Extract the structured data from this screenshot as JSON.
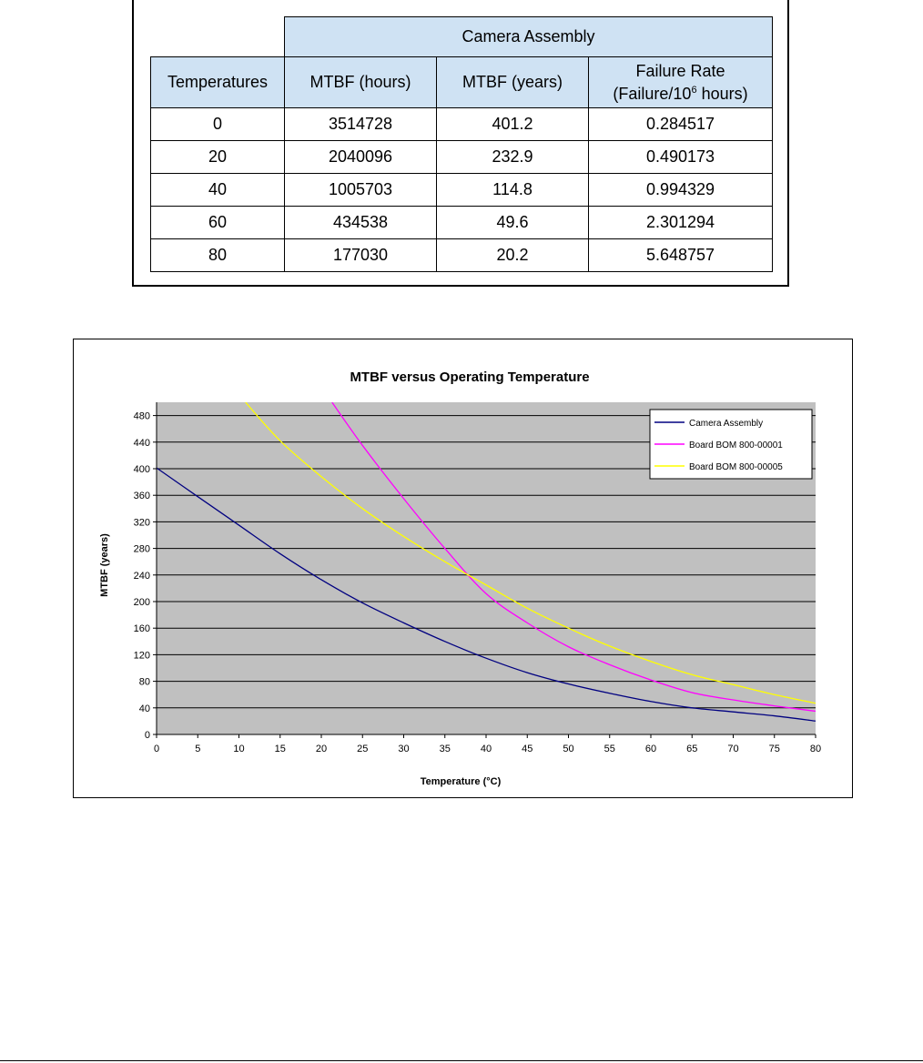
{
  "table": {
    "group_header": "Camera Assembly",
    "columns": {
      "temperatures": "Temperatures",
      "mtbf_hours": "MTBF (hours)",
      "mtbf_years": "MTBF (years)",
      "failure_rate_line1": "Failure Rate",
      "failure_rate_line2_prefix": "(Failure/10",
      "failure_rate_line2_sup": "6",
      "failure_rate_line2_suffix": " hours)"
    },
    "rows": [
      {
        "temp": "0",
        "hours": "3514728",
        "years": "401.2",
        "rate": "0.284517"
      },
      {
        "temp": "20",
        "hours": "2040096",
        "years": "232.9",
        "rate": "0.490173"
      },
      {
        "temp": "40",
        "hours": "1005703",
        "years": "114.8",
        "rate": "0.994329"
      },
      {
        "temp": "60",
        "hours": "434538",
        "years": "49.6",
        "rate": "2.301294"
      },
      {
        "temp": "80",
        "hours": "177030",
        "years": "20.2",
        "rate": "5.648757"
      }
    ]
  },
  "chart_data": {
    "type": "line",
    "title": "MTBF versus Operating Temperature",
    "xlabel": "Temperature (°C)",
    "ylabel": "MTBF (years)",
    "xlim": [
      0,
      80
    ],
    "ylim": [
      0,
      500
    ],
    "xticks": [
      0,
      5,
      10,
      15,
      20,
      25,
      30,
      35,
      40,
      45,
      50,
      55,
      60,
      65,
      70,
      75,
      80
    ],
    "yticks": [
      0,
      40,
      80,
      120,
      160,
      200,
      240,
      280,
      320,
      360,
      400,
      440,
      480
    ],
    "grid": "horizontal",
    "plot_background": "#c0c0c0",
    "legend_position": "top-right",
    "series": [
      {
        "name": "Camera Assembly",
        "color": "#000080",
        "x": [
          0,
          5,
          10,
          15,
          20,
          25,
          30,
          35,
          40,
          45,
          50,
          55,
          60,
          65,
          70,
          75,
          80
        ],
        "y": [
          401.2,
          358,
          315,
          272,
          232.9,
          198,
          168,
          140,
          114.8,
          93,
          76,
          62,
          49.6,
          40,
          34,
          28,
          20.2
        ]
      },
      {
        "name": "Board BOM 800-00001",
        "color": "#ff00ff",
        "x": [
          21.3,
          25,
          30,
          35,
          40,
          45,
          50,
          55,
          60,
          65,
          70,
          75,
          80
        ],
        "y": [
          500,
          435,
          355,
          280,
          212,
          168,
          132,
          105,
          82,
          63,
          52,
          43,
          35
        ]
      },
      {
        "name": "Board BOM 800-00005",
        "color": "#ffff00",
        "x": [
          10.8,
          15,
          20,
          25,
          30,
          35,
          40,
          45,
          50,
          55,
          60,
          65,
          70,
          75,
          80
        ],
        "y": [
          500,
          442,
          388,
          340,
          298,
          260,
          225,
          190,
          160,
          133,
          110,
          90,
          75,
          60,
          47
        ]
      }
    ]
  }
}
